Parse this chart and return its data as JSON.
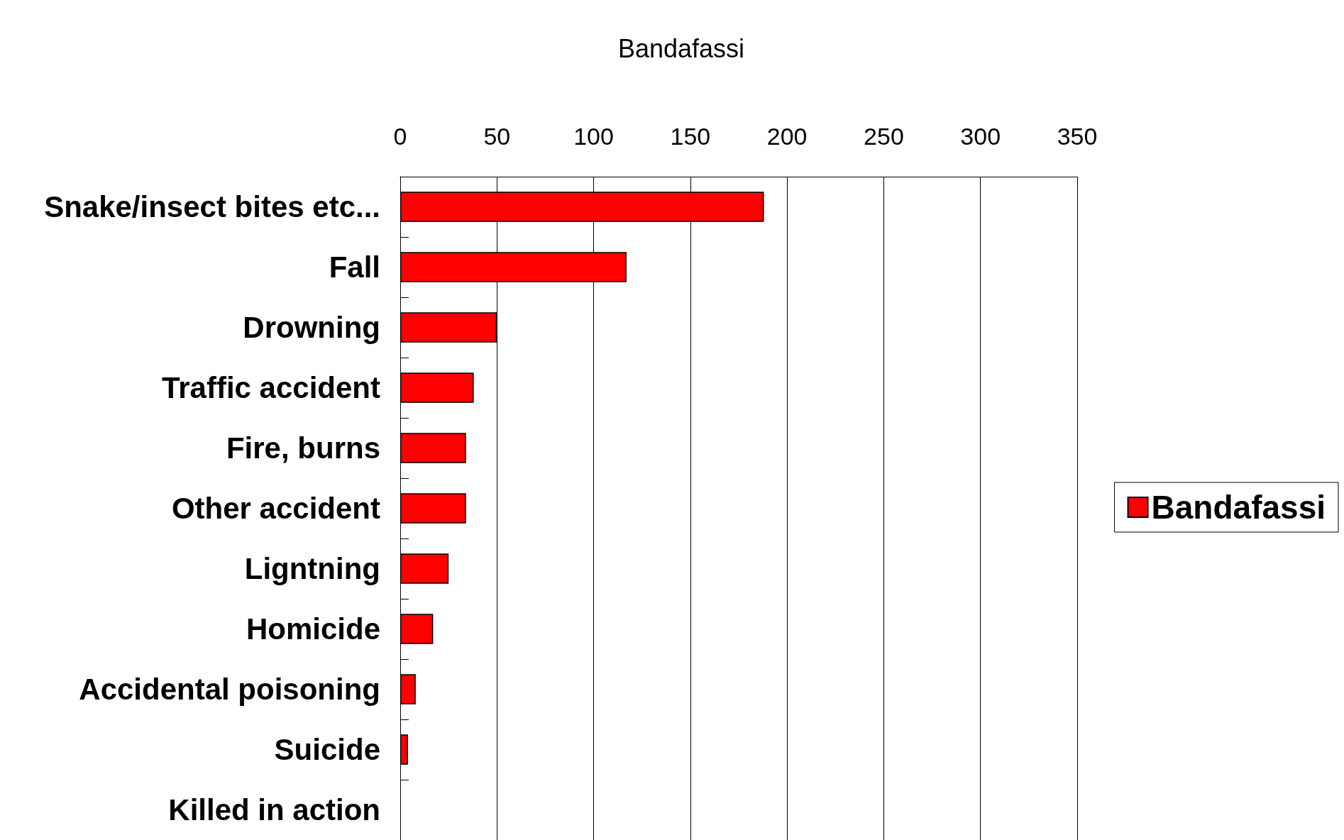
{
  "chart_data": {
    "type": "bar",
    "orientation": "horizontal",
    "title": "Bandafassi",
    "categories": [
      "Snake/insect bites etc...",
      "Fall",
      "Drowning",
      "Traffic accident",
      "Fire, burns",
      "Other accident",
      "Ligntning",
      "Homicide",
      "Accidental poisoning",
      "Suicide",
      "Killed in action"
    ],
    "series": [
      {
        "name": "Bandafassi",
        "color": "#ff0000",
        "values": [
          188,
          117,
          50,
          38,
          34,
          34,
          25,
          17,
          8,
          4,
          0
        ]
      }
    ],
    "xlim": [
      0,
      350
    ],
    "xticks": [
      0,
      50,
      100,
      150,
      200,
      250,
      300,
      350
    ],
    "grid": "x",
    "legend": "right"
  }
}
